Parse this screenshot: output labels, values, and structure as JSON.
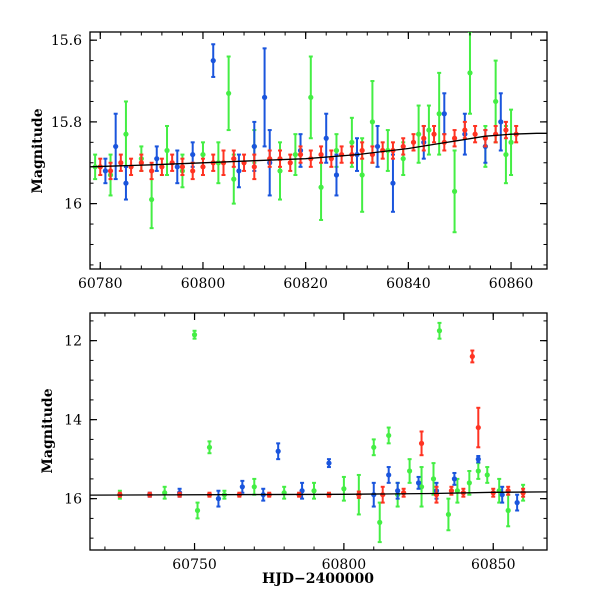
{
  "colors": {
    "green": "#44ee44",
    "blue": "#1a55dd",
    "red": "#ff3322",
    "model": "#000000"
  },
  "chart_data": [
    {
      "type": "scatter",
      "panel": "top",
      "xlabel": "",
      "ylabel": "Magnitude",
      "xlim": [
        60778,
        60867
      ],
      "ylim": [
        15.58,
        16.16
      ],
      "y_inverted": true,
      "xticks": [
        60780,
        60800,
        60820,
        60840,
        60860
      ],
      "yticks": [
        15.6,
        15.8,
        16
      ],
      "xtick_labels": [
        "60780",
        "60800",
        "60820",
        "60840",
        "60860"
      ],
      "ytick_labels": [
        "15.6",
        "15.8",
        "16"
      ],
      "grid": false,
      "series": [
        {
          "color_key": "green",
          "x": [
            60779,
            60782,
            60785,
            60788,
            60790,
            60793,
            60796,
            60800,
            60803,
            60805,
            60806,
            60810,
            60815,
            60818,
            60821,
            60823,
            60826,
            60829,
            60831,
            60833,
            60836,
            60839,
            60842,
            60844,
            60846,
            60849,
            60852,
            60855,
            60857,
            60859,
            60860
          ],
          "y": [
            15.91,
            15.93,
            15.83,
            15.89,
            15.99,
            15.87,
            15.92,
            15.88,
            15.9,
            15.73,
            15.94,
            15.86,
            15.92,
            15.88,
            15.74,
            15.96,
            15.87,
            15.85,
            15.93,
            15.8,
            15.87,
            15.89,
            15.83,
            15.82,
            15.78,
            15.97,
            15.68,
            15.86,
            15.75,
            15.88,
            15.85
          ],
          "err": [
            0.03,
            0.05,
            0.08,
            0.03,
            0.07,
            0.06,
            0.04,
            0.03,
            0.05,
            0.09,
            0.06,
            0.04,
            0.07,
            0.05,
            0.1,
            0.08,
            0.04,
            0.06,
            0.09,
            0.1,
            0.05,
            0.04,
            0.07,
            0.06,
            0.1,
            0.1,
            0.1,
            0.05,
            0.1,
            0.07,
            0.08
          ]
        },
        {
          "color_key": "blue",
          "x": [
            60781,
            60783,
            60785,
            60791,
            60795,
            60798,
            60802,
            60807,
            60810,
            60812,
            60813,
            60819,
            60824,
            60826,
            60830,
            60834,
            60837,
            60843,
            60847,
            60851,
            60855,
            60858
          ],
          "y": [
            15.92,
            15.86,
            15.95,
            15.89,
            15.91,
            15.88,
            15.65,
            15.92,
            15.86,
            15.74,
            15.9,
            15.87,
            15.84,
            15.93,
            15.88,
            15.86,
            15.95,
            15.85,
            15.78,
            15.83,
            15.86,
            15.8
          ],
          "err": [
            0.03,
            0.08,
            0.04,
            0.03,
            0.04,
            0.03,
            0.04,
            0.04,
            0.06,
            0.12,
            0.08,
            0.04,
            0.06,
            0.05,
            0.04,
            0.05,
            0.07,
            0.04,
            0.05,
            0.05,
            0.04,
            0.07
          ]
        },
        {
          "color_key": "red",
          "x": [
            60780,
            60782,
            60784,
            60786,
            60788,
            60790,
            60792,
            60794,
            60796,
            60798,
            60800,
            60802,
            60804,
            60806,
            60808,
            60810,
            60813,
            60815,
            60817,
            60819,
            60821,
            60823,
            60825,
            60827,
            60829,
            60831,
            60833,
            60835,
            60837,
            60839,
            60841,
            60843,
            60845,
            60847,
            60849,
            60851,
            60853,
            60855,
            60857,
            60859,
            60861
          ],
          "y": [
            15.91,
            15.92,
            15.9,
            15.91,
            15.9,
            15.92,
            15.91,
            15.9,
            15.91,
            15.92,
            15.91,
            15.9,
            15.9,
            15.89,
            15.9,
            15.91,
            15.89,
            15.89,
            15.9,
            15.88,
            15.89,
            15.88,
            15.89,
            15.88,
            15.88,
            15.87,
            15.88,
            15.87,
            15.87,
            15.86,
            15.85,
            15.84,
            15.83,
            15.85,
            15.84,
            15.82,
            15.83,
            15.84,
            15.83,
            15.82,
            15.83
          ],
          "err": [
            0.02,
            0.02,
            0.02,
            0.02,
            0.02,
            0.02,
            0.02,
            0.02,
            0.02,
            0.02,
            0.02,
            0.02,
            0.03,
            0.02,
            0.02,
            0.03,
            0.02,
            0.02,
            0.02,
            0.02,
            0.02,
            0.02,
            0.02,
            0.02,
            0.02,
            0.02,
            0.02,
            0.02,
            0.02,
            0.02,
            0.02,
            0.03,
            0.02,
            0.02,
            0.02,
            0.02,
            0.02,
            0.02,
            0.02,
            0.02,
            0.02
          ]
        }
      ],
      "model_line": {
        "color_key": "model",
        "x": [
          60778,
          60790,
          60800,
          60810,
          60820,
          60830,
          60840,
          60845,
          60850,
          60855,
          60860,
          60865,
          60867
        ],
        "y": [
          15.91,
          15.905,
          15.9,
          15.895,
          15.89,
          15.88,
          15.865,
          15.855,
          15.845,
          15.835,
          15.83,
          15.828,
          15.828
        ]
      }
    },
    {
      "type": "scatter",
      "panel": "bottom",
      "xlabel": "HJD−2400000",
      "ylabel": "Magnitude",
      "xlim": [
        60715,
        60868
      ],
      "ylim": [
        11.3,
        17.3
      ],
      "y_inverted": true,
      "xticks": [
        60750,
        60800,
        60850
      ],
      "yticks": [
        12,
        14,
        16
      ],
      "xtick_labels": [
        "60750",
        "60800",
        "60850"
      ],
      "ytick_labels": [
        "12",
        "14",
        "16"
      ],
      "grid": false,
      "series": [
        {
          "color_key": "green",
          "x": [
            60725,
            60740,
            60750,
            60751,
            60755,
            60760,
            60770,
            60780,
            60790,
            60800,
            60805,
            60810,
            60812,
            60815,
            60818,
            60822,
            60826,
            60830,
            60832,
            60835,
            60838,
            60842,
            60845,
            60848,
            60852,
            60855,
            60860
          ],
          "y": [
            15.9,
            15.85,
            11.85,
            16.3,
            14.7,
            15.9,
            15.7,
            15.85,
            15.8,
            15.75,
            15.9,
            14.7,
            16.6,
            14.4,
            15.9,
            15.3,
            15.7,
            15.5,
            11.75,
            16.4,
            15.8,
            15.6,
            15.3,
            15.4,
            15.8,
            16.3,
            15.85
          ],
          "err": [
            0.1,
            0.15,
            0.1,
            0.2,
            0.15,
            0.1,
            0.2,
            0.15,
            0.2,
            0.3,
            0.5,
            0.2,
            0.5,
            0.2,
            0.3,
            0.3,
            0.5,
            0.4,
            0.2,
            0.4,
            0.3,
            0.3,
            0.2,
            0.2,
            0.3,
            0.4,
            0.2
          ]
        },
        {
          "color_key": "blue",
          "x": [
            60735,
            60745,
            60758,
            60766,
            60773,
            60778,
            60786,
            60795,
            60810,
            60815,
            60818,
            60825,
            60831,
            60837,
            60845,
            60853,
            60858
          ],
          "y": [
            15.9,
            15.85,
            16.0,
            15.7,
            15.9,
            14.8,
            15.8,
            15.1,
            15.9,
            15.4,
            15.8,
            15.6,
            15.8,
            15.5,
            15.0,
            15.9,
            16.1
          ],
          "err": [
            0.05,
            0.1,
            0.2,
            0.15,
            0.15,
            0.2,
            0.2,
            0.1,
            0.3,
            0.2,
            0.2,
            0.15,
            0.2,
            0.15,
            0.08,
            0.2,
            0.2
          ]
        },
        {
          "color_key": "red",
          "x": [
            60725,
            60735,
            60745,
            60755,
            60765,
            60775,
            60785,
            60795,
            60805,
            60813,
            60820,
            60826,
            60831,
            60836,
            60840,
            60843,
            60845,
            60850,
            60855,
            60860
          ],
          "y": [
            15.9,
            15.9,
            15.9,
            15.9,
            15.9,
            15.9,
            15.9,
            15.9,
            15.9,
            15.9,
            15.85,
            14.6,
            15.9,
            15.8,
            15.85,
            12.4,
            14.2,
            15.85,
            15.8,
            15.85
          ],
          "err": [
            0.05,
            0.05,
            0.05,
            0.05,
            0.05,
            0.05,
            0.05,
            0.05,
            0.08,
            0.2,
            0.1,
            0.3,
            0.2,
            0.1,
            0.1,
            0.15,
            0.5,
            0.1,
            0.1,
            0.1
          ]
        }
      ],
      "model_line": {
        "color_key": "model",
        "x": [
          60715,
          60800,
          60830,
          60850,
          60868
        ],
        "y": [
          15.91,
          15.89,
          15.87,
          15.84,
          15.83
        ]
      }
    }
  ]
}
